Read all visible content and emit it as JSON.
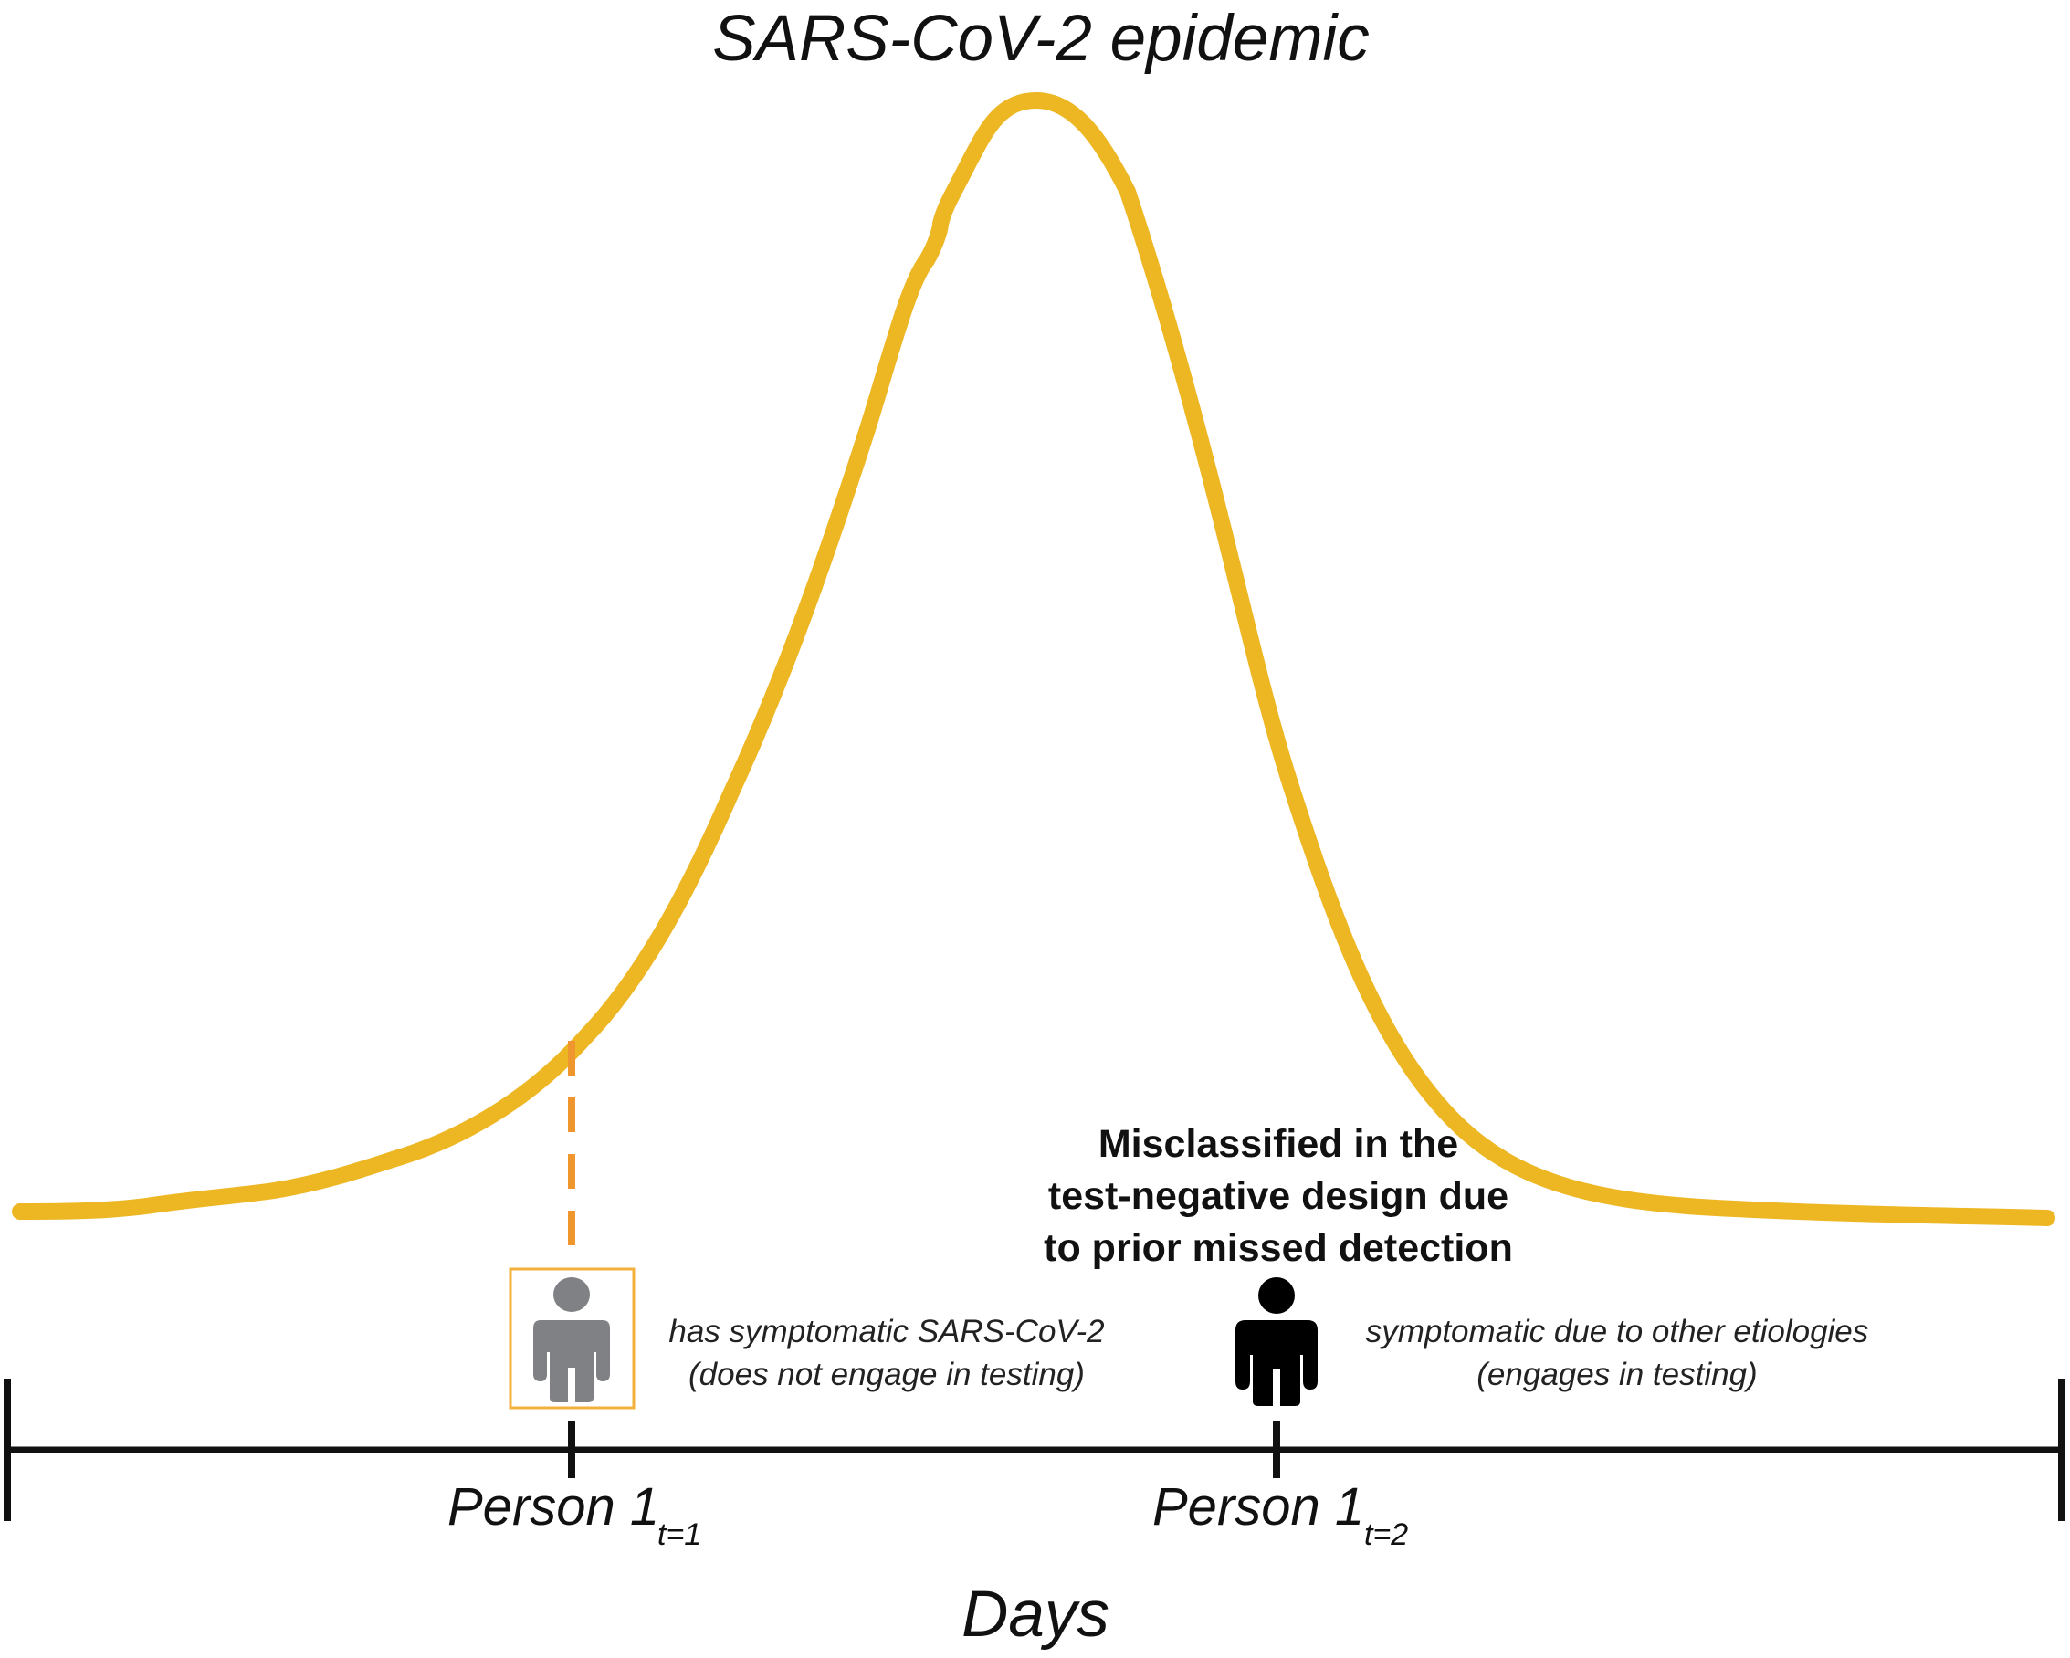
{
  "title": "SARS-CoV-2 epidemic",
  "axis": {
    "label": "Days"
  },
  "colors": {
    "curve": "#EDB623",
    "dashed_line": "#F0962E",
    "highlight_box": "#F2B13A",
    "person_gray": "#808185",
    "person_black": "#000000",
    "axis": "#111111"
  },
  "persons": [
    {
      "label": "Person 1",
      "subscript": "t=1",
      "icon": "person-icon",
      "note_line1": "has symptomatic SARS-CoV-2",
      "note_line2": "(does not engage in testing)"
    },
    {
      "label": "Person 1",
      "subscript": "t=2",
      "icon": "person-icon",
      "note_line1": "symptomatic due to other etiologies",
      "note_line2": "(engages in testing)"
    }
  ],
  "callout": {
    "line1": "Misclassified in the",
    "line2": "test-negative design due",
    "line3": "to prior missed detection"
  }
}
